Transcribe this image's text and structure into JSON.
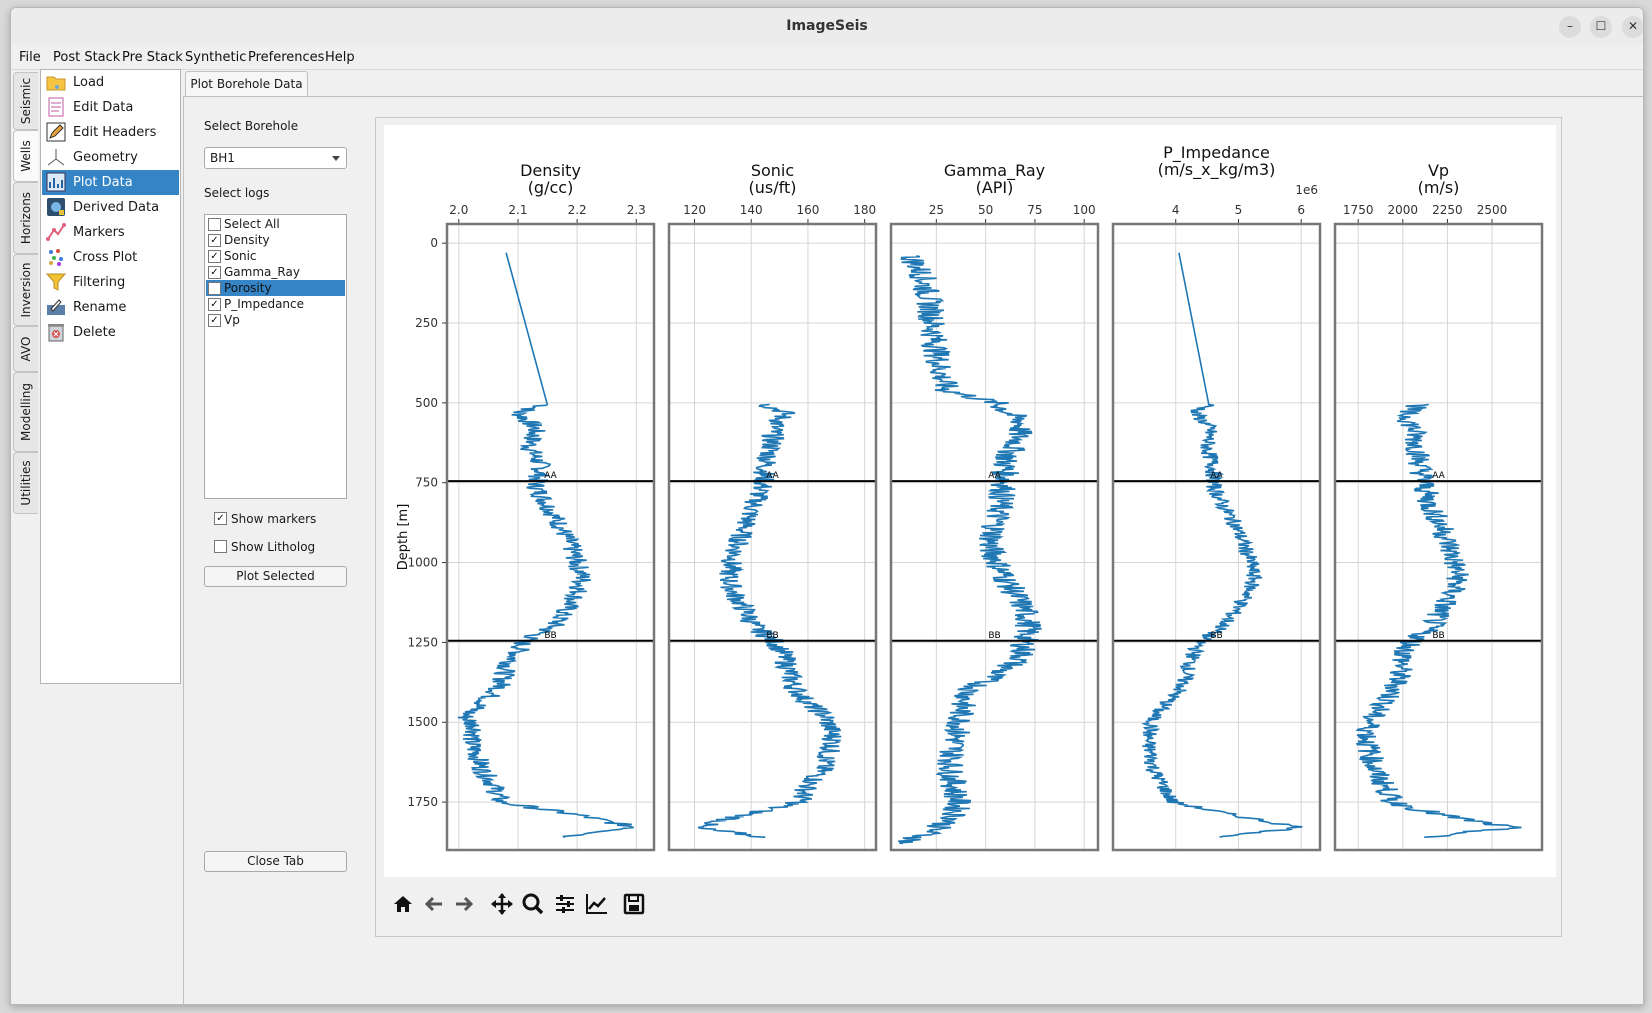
{
  "window": {
    "title": "ImageSeis",
    "minimize": "–",
    "maximize": "☐",
    "close": "✕"
  },
  "menu": [
    "File",
    "Post Stack",
    "Pre Stack",
    "Synthetic",
    "Preferences",
    "Help"
  ],
  "vertical_tabs": [
    "Seismic",
    "Wells",
    "Horizons",
    "Inversion",
    "AVO",
    "Modelling",
    "Utilities"
  ],
  "active_vertical_tab": "Wells",
  "nav": {
    "items": [
      {
        "label": "Load",
        "icon": "folder-icon"
      },
      {
        "label": "Edit Data",
        "icon": "document-icon"
      },
      {
        "label": "Edit Headers",
        "icon": "pencil-icon"
      },
      {
        "label": "Geometry",
        "icon": "axes-icon"
      },
      {
        "label": "Plot Data",
        "icon": "chart-icon"
      },
      {
        "label": "Derived Data",
        "icon": "calculator-icon"
      },
      {
        "label": "Markers",
        "icon": "markers-icon"
      },
      {
        "label": "Cross Plot",
        "icon": "scatter-icon"
      },
      {
        "label": "Filtering",
        "icon": "funnel-icon"
      },
      {
        "label": "Rename",
        "icon": "rename-icon"
      },
      {
        "label": "Delete",
        "icon": "trash-icon"
      }
    ],
    "selected": "Plot Data"
  },
  "tab": {
    "label": "Plot Borehole Data"
  },
  "controls": {
    "select_borehole_label": "Select Borehole",
    "borehole_value": "BH1",
    "select_logs_label": "Select logs",
    "logs": [
      {
        "label": "Select All",
        "checked": false
      },
      {
        "label": "Density",
        "checked": true
      },
      {
        "label": "Sonic",
        "checked": true
      },
      {
        "label": "Gamma_Ray",
        "checked": true
      },
      {
        "label": "Porosity",
        "checked": false
      },
      {
        "label": "P_Impedance",
        "checked": true
      },
      {
        "label": "Vp",
        "checked": true
      }
    ],
    "selected_log": "Porosity",
    "show_markers": {
      "label": "Show markers",
      "checked": true
    },
    "show_litholog": {
      "label": "Show Litholog",
      "checked": false
    },
    "plot_button": "Plot Selected",
    "close_button": "Close Tab"
  },
  "toolbar": [
    "home-icon",
    "back-icon",
    "forward-icon",
    "pan-icon",
    "zoom-icon",
    "configure-icon",
    "axes-edit-icon",
    "save-icon"
  ],
  "chart_data": {
    "type": "line",
    "ylabel": "Depth [m]",
    "ylim": [
      1900,
      -60
    ],
    "yticks": [
      0,
      250,
      500,
      750,
      1000,
      1250,
      1500,
      1750
    ],
    "markers": [
      {
        "name": "AA",
        "depth": 745
      },
      {
        "name": "BB",
        "depth": 1245
      }
    ],
    "color": "#1f77b4",
    "tracks": [
      {
        "name": "Density",
        "unit": "(g/cc)",
        "xlim": [
          1.98,
          2.33
        ],
        "xticks": [
          2.0,
          2.1,
          2.2,
          2.3
        ],
        "xticklabels": [
          "2.0",
          "2.1",
          "2.2",
          "2.3"
        ],
        "offset_text": "",
        "depth": [
          30,
          505,
          530,
          580,
          640,
          700,
          760,
          820,
          880,
          950,
          1000,
          1050,
          1100,
          1150,
          1200,
          1245,
          1280,
          1330,
          1390,
          1440,
          1480,
          1520,
          1560,
          1600,
          1650,
          1700,
          1750,
          1790,
          1830,
          1860
        ],
        "values": [
          2.08,
          2.15,
          2.1,
          2.13,
          2.12,
          2.14,
          2.13,
          2.15,
          2.17,
          2.19,
          2.2,
          2.21,
          2.2,
          2.18,
          2.16,
          2.11,
          2.1,
          2.08,
          2.07,
          2.04,
          2.01,
          2.03,
          2.02,
          2.03,
          2.04,
          2.06,
          2.07,
          2.2,
          2.3,
          2.18
        ],
        "noise": 0.018
      },
      {
        "name": "Sonic",
        "unit": "(us/ft)",
        "xlim": [
          111,
          184
        ],
        "xticks": [
          120,
          140,
          160,
          180
        ],
        "xticklabels": [
          "120",
          "140",
          "160",
          "180"
        ],
        "offset_text": "",
        "depth": [
          505,
          530,
          580,
          640,
          700,
          760,
          820,
          880,
          950,
          1000,
          1050,
          1100,
          1150,
          1200,
          1245,
          1280,
          1330,
          1390,
          1440,
          1480,
          1520,
          1560,
          1600,
          1650,
          1700,
          1750,
          1790,
          1830,
          1860
        ],
        "values": [
          145,
          152,
          148,
          147,
          145,
          144,
          141,
          138,
          135,
          133,
          132,
          134,
          138,
          141,
          148,
          151,
          153,
          155,
          160,
          166,
          168,
          169,
          167,
          165,
          160,
          157,
          138,
          120,
          145
        ],
        "noise": 4
      },
      {
        "name": "Gamma_Ray",
        "unit": "(API)",
        "xlim": [
          2,
          107
        ],
        "xticks": [
          25,
          50,
          75,
          100
        ],
        "xticklabels": [
          "25",
          "50",
          "75",
          "100"
        ],
        "offset_text": "",
        "depth": [
          40,
          100,
          200,
          300,
          400,
          460,
          500,
          560,
          620,
          680,
          745,
          800,
          880,
          950,
          1000,
          1050,
          1100,
          1150,
          1200,
          1245,
          1300,
          1350,
          1400,
          1450,
          1500,
          1550,
          1600,
          1650,
          1700,
          1750,
          1800,
          1850,
          1880
        ],
        "values": [
          12,
          18,
          22,
          24,
          27,
          30,
          55,
          68,
          66,
          60,
          60,
          58,
          55,
          52,
          56,
          60,
          65,
          70,
          72,
          70,
          68,
          55,
          42,
          38,
          37,
          35,
          33,
          32,
          34,
          36,
          34,
          20,
          8
        ],
        "noise": 7
      },
      {
        "name": "P_Impedance",
        "unit": "(m/s_x_kg/m3)",
        "xlim": [
          3.0,
          6.3
        ],
        "xticks": [
          4,
          5,
          6
        ],
        "xticklabels": [
          "4",
          "5",
          "6"
        ],
        "offset_text": "1e6",
        "depth": [
          30,
          505,
          530,
          580,
          640,
          700,
          760,
          820,
          880,
          950,
          1000,
          1050,
          1100,
          1150,
          1200,
          1245,
          1280,
          1330,
          1390,
          1440,
          1480,
          1520,
          1560,
          1600,
          1650,
          1700,
          1750,
          1790,
          1830,
          1860
        ],
        "values": [
          4.05,
          4.55,
          4.3,
          4.55,
          4.5,
          4.6,
          4.6,
          4.75,
          4.95,
          5.1,
          5.2,
          5.25,
          5.15,
          4.95,
          4.75,
          4.4,
          4.3,
          4.2,
          4.1,
          3.85,
          3.65,
          3.6,
          3.55,
          3.6,
          3.65,
          3.8,
          3.95,
          4.9,
          6.0,
          4.7
        ],
        "noise": 0.13
      },
      {
        "name": "Vp",
        "unit": "(m/s)",
        "xlim": [
          1620,
          2780
        ],
        "xticks": [
          1750,
          2000,
          2250,
          2500
        ],
        "xticklabels": [
          "1750",
          "2000",
          "2250",
          "2500"
        ],
        "offset_text": "",
        "depth": [
          505,
          530,
          580,
          640,
          700,
          760,
          820,
          880,
          950,
          1000,
          1050,
          1100,
          1150,
          1200,
          1245,
          1280,
          1330,
          1390,
          1440,
          1480,
          1520,
          1560,
          1600,
          1650,
          1700,
          1750,
          1790,
          1830,
          1860
        ],
        "values": [
          2100,
          2010,
          2060,
          2080,
          2100,
          2120,
          2150,
          2210,
          2260,
          2290,
          2310,
          2270,
          2210,
          2160,
          2060,
          2010,
          1990,
          1960,
          1900,
          1830,
          1810,
          1800,
          1820,
          1840,
          1900,
          1940,
          2210,
          2600,
          2120
        ],
        "noise": 70
      }
    ]
  }
}
